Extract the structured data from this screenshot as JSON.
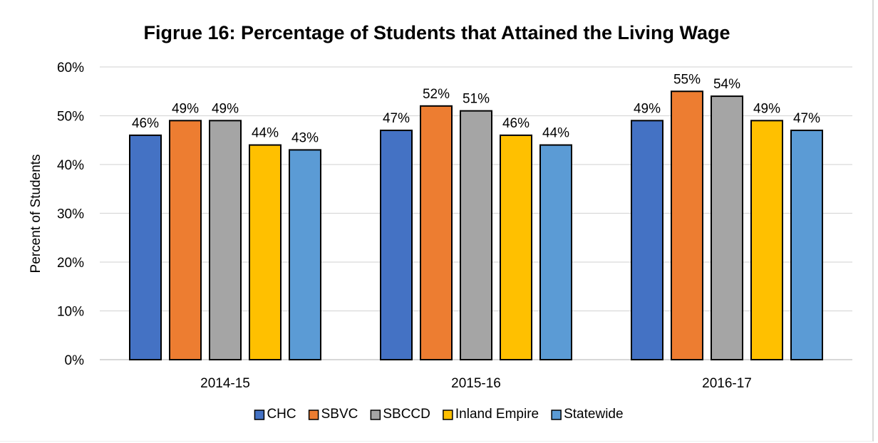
{
  "chart_data": {
    "type": "bar",
    "title": "Figrue 16: Percentage of Students that Attained the Living Wage",
    "xlabel": "",
    "ylabel": "Percent of Students",
    "ylim": [
      0,
      60
    ],
    "yticks": [
      "0%",
      "10%",
      "20%",
      "30%",
      "40%",
      "50%",
      "60%"
    ],
    "grid": true,
    "legend_position": "bottom",
    "categories": [
      "2014-15",
      "2015-16",
      "2016-17"
    ],
    "series": [
      {
        "name": "CHC",
        "color": "#4472c4",
        "values": [
          46,
          47,
          49
        ],
        "labels": [
          "46%",
          "47%",
          "49%"
        ]
      },
      {
        "name": "SBVC",
        "color": "#ed7d31",
        "values": [
          49,
          52,
          55
        ],
        "labels": [
          "49%",
          "52%",
          "55%"
        ]
      },
      {
        "name": "SBCCD",
        "color": "#a5a5a5",
        "values": [
          49,
          51,
          54
        ],
        "labels": [
          "49%",
          "51%",
          "54%"
        ]
      },
      {
        "name": "Inland Empire",
        "color": "#ffc000",
        "values": [
          44,
          46,
          49
        ],
        "labels": [
          "44%",
          "46%",
          "49%"
        ]
      },
      {
        "name": "Statewide",
        "color": "#5b9bd5",
        "values": [
          43,
          44,
          47
        ],
        "labels": [
          "43%",
          "44%",
          "47%"
        ]
      }
    ]
  }
}
